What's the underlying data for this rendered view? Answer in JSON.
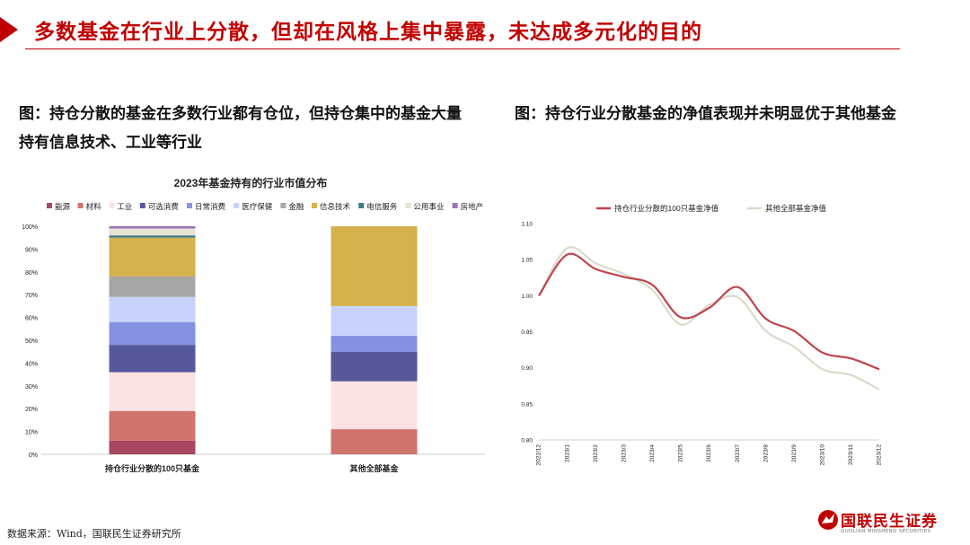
{
  "slide": {
    "title": "多数基金在行业上分散，但却在风格上集中暴露，未达成多元化的目的",
    "caption_left": "图：持仓分散的基金在多数行业都有仓位，但持仓集中的基金大量持有信息技术、工业等行业",
    "caption_right": "图：持仓行业分散基金的净值表现并未明显优于其他基金",
    "source": "数据来源：Wind，国联民生证券研究所",
    "logo_text": "国联民生证券",
    "logo_sub": "GUOLIAN MINSHENG SECURITIES",
    "accent_color": "#c00000"
  },
  "chart_data": [
    {
      "type": "bar",
      "stacked": true,
      "title": "2023年基金持有的行业市值分布",
      "legend_position": "top",
      "categories": [
        "持仓行业分散的100只基金",
        "其他全部基金"
      ],
      "y_ticks": [
        "0%",
        "10%",
        "20%",
        "30%",
        "40%",
        "50%",
        "60%",
        "70%",
        "80%",
        "90%",
        "100%"
      ],
      "ylim": [
        0,
        100
      ],
      "series": [
        {
          "name": "能源",
          "color": "#a8475f",
          "values": [
            6,
            0
          ]
        },
        {
          "name": "材料",
          "color": "#cf736b",
          "values": [
            13,
            11
          ]
        },
        {
          "name": "工业",
          "color": "#fde2e4",
          "values": [
            17,
            21
          ]
        },
        {
          "name": "可选消费",
          "color": "#55599c",
          "values": [
            12,
            13
          ]
        },
        {
          "name": "日常消费",
          "color": "#8592e3",
          "values": [
            10,
            7
          ]
        },
        {
          "name": "医疗保健",
          "color": "#c7d3fc",
          "values": [
            11,
            13
          ]
        },
        {
          "name": "金融",
          "color": "#a6a6a6",
          "values": [
            9,
            0
          ]
        },
        {
          "name": "信息技术",
          "color": "#d4b24c",
          "values": [
            17,
            35
          ]
        },
        {
          "name": "电信服务",
          "color": "#3e7d8c",
          "values": [
            1,
            0
          ]
        },
        {
          "name": "公用事业",
          "color": "#e8e2d3",
          "values": [
            3,
            0
          ]
        },
        {
          "name": "房地产",
          "color": "#9b73b8",
          "values": [
            1,
            0
          ]
        }
      ]
    },
    {
      "type": "line",
      "legend_position": "top",
      "x": [
        "2022/12",
        "2023/1",
        "2023/2",
        "2023/3",
        "2023/4",
        "2023/5",
        "2023/6",
        "2023/7",
        "2023/8",
        "2023/9",
        "2023/10",
        "2023/11",
        "2023/12"
      ],
      "y_ticks": [
        "0.80",
        "0.85",
        "0.90",
        "0.95",
        "1.00",
        "1.05",
        "1.10"
      ],
      "ylim": [
        0.8,
        1.1
      ],
      "series": [
        {
          "name": "持仓行业分散的100只基金净值",
          "color": "#c0444b",
          "values": [
            1.0,
            1.057,
            1.037,
            1.026,
            1.015,
            0.97,
            0.983,
            1.012,
            0.968,
            0.951,
            0.921,
            0.913,
            0.898
          ]
        },
        {
          "name": "其他全部基金净值",
          "color": "#dcdac8",
          "values": [
            1.0,
            1.066,
            1.045,
            1.03,
            1.008,
            0.96,
            0.987,
            0.998,
            0.951,
            0.929,
            0.898,
            0.89,
            0.87
          ]
        }
      ]
    }
  ]
}
